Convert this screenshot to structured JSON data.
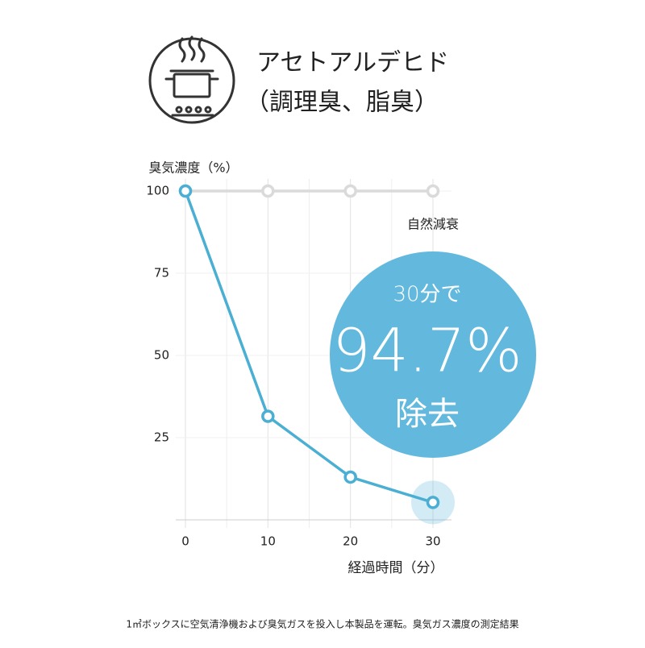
{
  "chart_data": {
    "type": "line",
    "title": "アセトアルデヒド",
    "subtitle": "（調理臭、脂臭）",
    "ylabel": "臭気濃度（%）",
    "xlabel": "経過時間（分）",
    "x": [
      0,
      10,
      20,
      30
    ],
    "series": [
      {
        "name": "自然減衰",
        "color": "#dadada",
        "values": [
          100,
          100,
          100,
          100
        ]
      },
      {
        "color": "#4aafd2",
        "values": [
          100,
          31.5,
          13,
          5.3
        ]
      }
    ],
    "xlim": [
      0,
      30
    ],
    "ylim": [
      0,
      100
    ],
    "xticks": [
      0,
      10,
      20,
      30
    ],
    "yticks": [
      25,
      50,
      75,
      100
    ],
    "grid": true,
    "callout": {
      "color": "#62b9dd",
      "lines": [
        "30分で",
        "94.7%",
        "除去"
      ]
    },
    "note": "1㎥ボックスに空気清浄機および臭気ガスを投入し本製品を運転。臭気ガス濃度の測定結果"
  }
}
